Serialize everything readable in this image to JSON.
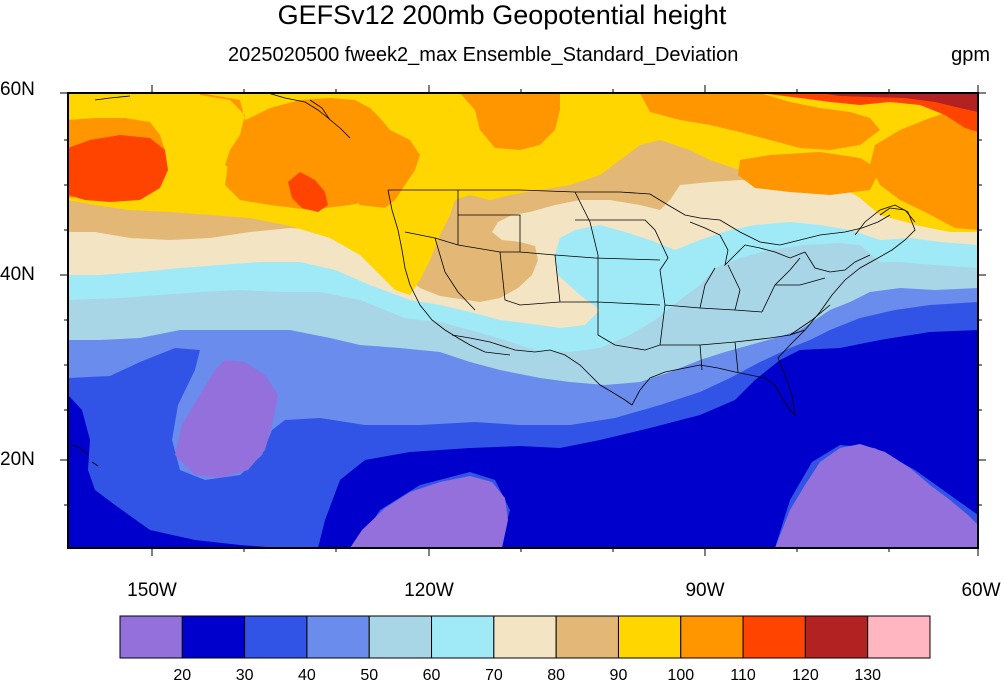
{
  "title": "GEFSv12 200mb Geopotential height",
  "subtitle": "2025020500 fweek2_max Ensemble_Standard_Deviation",
  "units": "gpm",
  "map": {
    "lon_range": [
      -160,
      -60
    ],
    "lat_range": [
      10,
      60
    ],
    "lat_labels": [
      "60N",
      "40N",
      "20N"
    ],
    "lon_labels": [
      "150W",
      "120W",
      "90W",
      "60W"
    ]
  },
  "colorbar": {
    "levels": [
      "20",
      "30",
      "40",
      "50",
      "60",
      "70",
      "80",
      "90",
      "100",
      "110",
      "120",
      "130"
    ],
    "colors": [
      "#9370db",
      "#0000cd",
      "#3254e6",
      "#6a8ced",
      "#a8d6e6",
      "#a0eaf7",
      "#f3e4c3",
      "#e3b876",
      "#ffd600",
      "#ff9600",
      "#ff4400",
      "#b22222",
      "#ffb6c1"
    ]
  }
}
